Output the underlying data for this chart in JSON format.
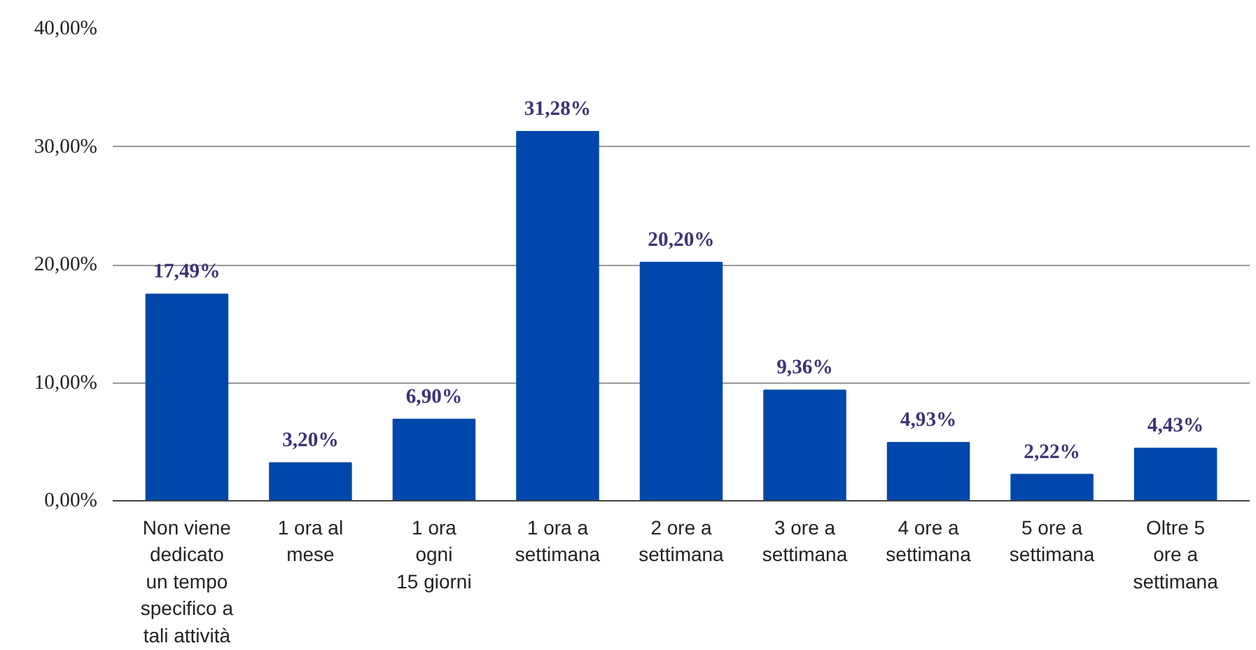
{
  "chart_data": {
    "type": "bar",
    "categories": [
      "Non viene\ndedicato\nun tempo\nspecifico a\ntali attività",
      "1 ora al\nmese",
      "1 ora\nogni\n15 giorni",
      "1 ora a\nsettimana",
      "2 ore a\nsettimana",
      "3 ore a\nsettimana",
      "4 ore a\nsettimana",
      "5 ore a\nsettimana",
      "Oltre 5\nore a\nsettimana"
    ],
    "values": [
      17.49,
      3.2,
      6.9,
      31.28,
      20.2,
      9.36,
      4.93,
      2.22,
      4.43
    ],
    "value_labels": [
      "17,49%",
      "3,20%",
      "6,90%",
      "31,28%",
      "20,20%",
      "9,36%",
      "4,93%",
      "2,22%",
      "4,43%"
    ],
    "color": "#0047ab",
    "ylim": [
      0,
      40
    ],
    "yticks": [
      {
        "value": 0,
        "label": "0,00%"
      },
      {
        "value": 10,
        "label": "10,00%"
      },
      {
        "value": 20,
        "label": "20,00%"
      },
      {
        "value": 30,
        "label": "30,00%"
      },
      {
        "value": 40,
        "label": "40,00%"
      }
    ],
    "grid": "y"
  }
}
